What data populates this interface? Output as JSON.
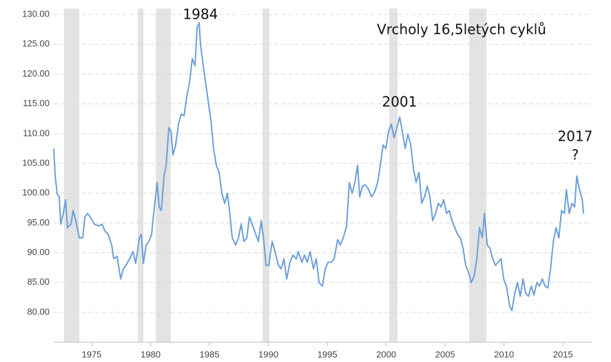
{
  "chart_data": {
    "type": "line",
    "annotations": [
      "1984",
      "Vrcholy 16,5letých cyklů",
      "2001",
      "2017",
      "?"
    ],
    "xlim": [
      1971.78,
      2017.5
    ],
    "xticks": [
      1975,
      1980,
      1985,
      1990,
      1995,
      2000,
      2005,
      2010,
      2015
    ],
    "ylim": [
      75,
      131
    ],
    "yticks": [
      {
        "value": 80,
        "label": "80.00"
      },
      {
        "value": 85,
        "label": "85.00"
      },
      {
        "value": 90,
        "label": "90.00"
      },
      {
        "value": 95,
        "label": "95.00"
      },
      {
        "value": 100,
        "label": "100.00"
      },
      {
        "value": 105,
        "label": "105.00"
      },
      {
        "value": 110,
        "label": "110.00"
      },
      {
        "value": 115,
        "label": "115.00"
      },
      {
        "value": 120,
        "label": "120.00"
      },
      {
        "value": 125,
        "label": "125.00"
      },
      {
        "value": 130,
        "label": "130.00"
      }
    ],
    "grid": true,
    "recessions": [
      [
        1972.66,
        1973.95
      ],
      [
        1978.92,
        1979.39
      ],
      [
        1980.44,
        1981.73
      ],
      [
        1989.5,
        1990.09
      ],
      [
        2000.26,
        2000.96
      ],
      [
        2007.05,
        2008.51
      ]
    ],
    "recession_color": "#e3e3e3",
    "x": [
      1971.78,
      1971.9,
      1972.08,
      1972.25,
      1972.37,
      1972.6,
      1972.78,
      1972.95,
      1973.25,
      1973.42,
      1973.65,
      1973.95,
      1974.24,
      1974.42,
      1974.65,
      1974.88,
      1975.23,
      1975.58,
      1975.88,
      1976.11,
      1976.4,
      1976.7,
      1976.87,
      1977.16,
      1977.46,
      1977.69,
      1977.92,
      1978.22,
      1978.51,
      1978.74,
      1979.04,
      1979.21,
      1979.39,
      1979.62,
      1979.85,
      1980.09,
      1980.32,
      1980.56,
      1980.73,
      1980.91,
      1981.14,
      1981.32,
      1981.55,
      1981.73,
      1981.9,
      1982.13,
      1982.37,
      1982.6,
      1982.84,
      1983.07,
      1983.3,
      1983.54,
      1983.77,
      1983.95,
      1984.12,
      1984.24,
      1984.47,
      1984.71,
      1984.88,
      1985.12,
      1985.35,
      1985.58,
      1985.82,
      1986.05,
      1986.29,
      1986.52,
      1986.7,
      1986.93,
      1987.22,
      1987.46,
      1987.69,
      1987.92,
      1988.16,
      1988.39,
      1988.63,
      1988.92,
      1989.15,
      1989.39,
      1989.62,
      1989.8,
      1990.03,
      1990.32,
      1990.56,
      1990.85,
      1991.08,
      1991.32,
      1991.55,
      1991.84,
      1992.08,
      1992.37,
      1992.54,
      1992.84,
      1993.07,
      1993.3,
      1993.54,
      1993.83,
      1994.06,
      1994.3,
      1994.59,
      1994.82,
      1995.06,
      1995.35,
      1995.58,
      1995.88,
      1996.11,
      1996.35,
      1996.64,
      1996.87,
      1997.11,
      1997.34,
      1997.57,
      1997.75,
      1997.98,
      1998.22,
      1998.51,
      1998.74,
      1998.98,
      1999.27,
      1999.5,
      1999.74,
      1999.97,
      2000.2,
      2000.44,
      2000.67,
      2000.91,
      2001.14,
      2001.37,
      2001.61,
      2001.84,
      2002.08,
      2002.31,
      2002.54,
      2002.78,
      2003.01,
      2003.25,
      2003.48,
      2003.71,
      2003.95,
      2004.18,
      2004.42,
      2004.65,
      2004.88,
      2005.12,
      2005.35,
      2005.58,
      2005.82,
      2006.05,
      2006.29,
      2006.52,
      2006.75,
      2006.99,
      2007.22,
      2007.46,
      2007.69,
      2007.92,
      2008.16,
      2008.33,
      2008.57,
      2008.8,
      2009.04,
      2009.27,
      2009.5,
      2009.74,
      2009.97,
      2010.2,
      2010.5,
      2010.67,
      2010.91,
      2011.14,
      2011.37,
      2011.61,
      2011.84,
      2012.08,
      2012.31,
      2012.54,
      2012.78,
      2013.01,
      2013.25,
      2013.48,
      2013.71,
      2013.95,
      2014.18,
      2014.42,
      2014.65,
      2014.88,
      2015.12,
      2015.29,
      2015.53,
      2015.76,
      2015.99,
      2016.17,
      2016.4,
      2016.64,
      2016.75
    ],
    "series": [
      {
        "color": "#6a9fd8",
        "values": [
          107.5,
          102.9,
          99.8,
          99.4,
          94.8,
          96.6,
          98.9,
          94.2,
          94.8,
          97.1,
          95.4,
          92.5,
          92.5,
          96.0,
          96.6,
          96.0,
          94.8,
          94.5,
          94.8,
          93.7,
          93.1,
          91.3,
          89.0,
          89.4,
          85.6,
          87.3,
          87.9,
          89.0,
          90.2,
          88.2,
          92.5,
          93.1,
          88.2,
          91.3,
          91.9,
          93.1,
          97.7,
          101.8,
          97.7,
          97.1,
          102.9,
          104.7,
          111.0,
          110.4,
          106.4,
          108.1,
          111.6,
          113.3,
          113.0,
          116.2,
          118.5,
          122.6,
          121.4,
          127.8,
          128.6,
          124.9,
          121.4,
          118.0,
          115.6,
          112.2,
          107.5,
          104.7,
          103.5,
          100.0,
          98.3,
          100.0,
          97.1,
          92.5,
          91.3,
          92.5,
          94.8,
          91.9,
          92.5,
          96.0,
          94.8,
          93.1,
          91.9,
          95.4,
          91.9,
          87.9,
          87.9,
          91.9,
          90.2,
          87.9,
          87.3,
          89.0,
          85.6,
          88.4,
          89.6,
          89.0,
          90.2,
          88.4,
          89.6,
          88.4,
          90.2,
          87.3,
          89.0,
          85.0,
          84.4,
          87.3,
          88.4,
          88.4,
          89.0,
          92.2,
          91.3,
          92.5,
          94.5,
          101.8,
          100.0,
          101.8,
          104.7,
          99.4,
          101.2,
          101.4,
          100.6,
          99.4,
          100.0,
          101.8,
          104.7,
          108.1,
          107.5,
          110.4,
          111.6,
          109.3,
          111.0,
          112.8,
          110.4,
          107.5,
          109.9,
          108.1,
          104.1,
          101.8,
          103.5,
          98.3,
          99.4,
          101.2,
          99.4,
          95.4,
          96.6,
          98.3,
          97.7,
          98.9,
          96.6,
          97.1,
          95.4,
          94.2,
          93.1,
          92.5,
          90.8,
          87.9,
          86.7,
          85.0,
          86.1,
          89.0,
          94.2,
          92.5,
          96.6,
          91.3,
          90.8,
          89.0,
          87.9,
          88.4,
          89.0,
          85.6,
          84.4,
          80.9,
          80.3,
          83.2,
          85.0,
          82.7,
          85.6,
          83.2,
          82.7,
          84.4,
          82.9,
          85.0,
          84.4,
          85.6,
          84.4,
          84.1,
          87.3,
          91.9,
          94.2,
          92.5,
          97.1,
          96.6,
          100.6,
          96.6,
          98.3,
          97.7,
          102.9,
          100.6,
          98.9,
          96.6
        ]
      }
    ]
  }
}
